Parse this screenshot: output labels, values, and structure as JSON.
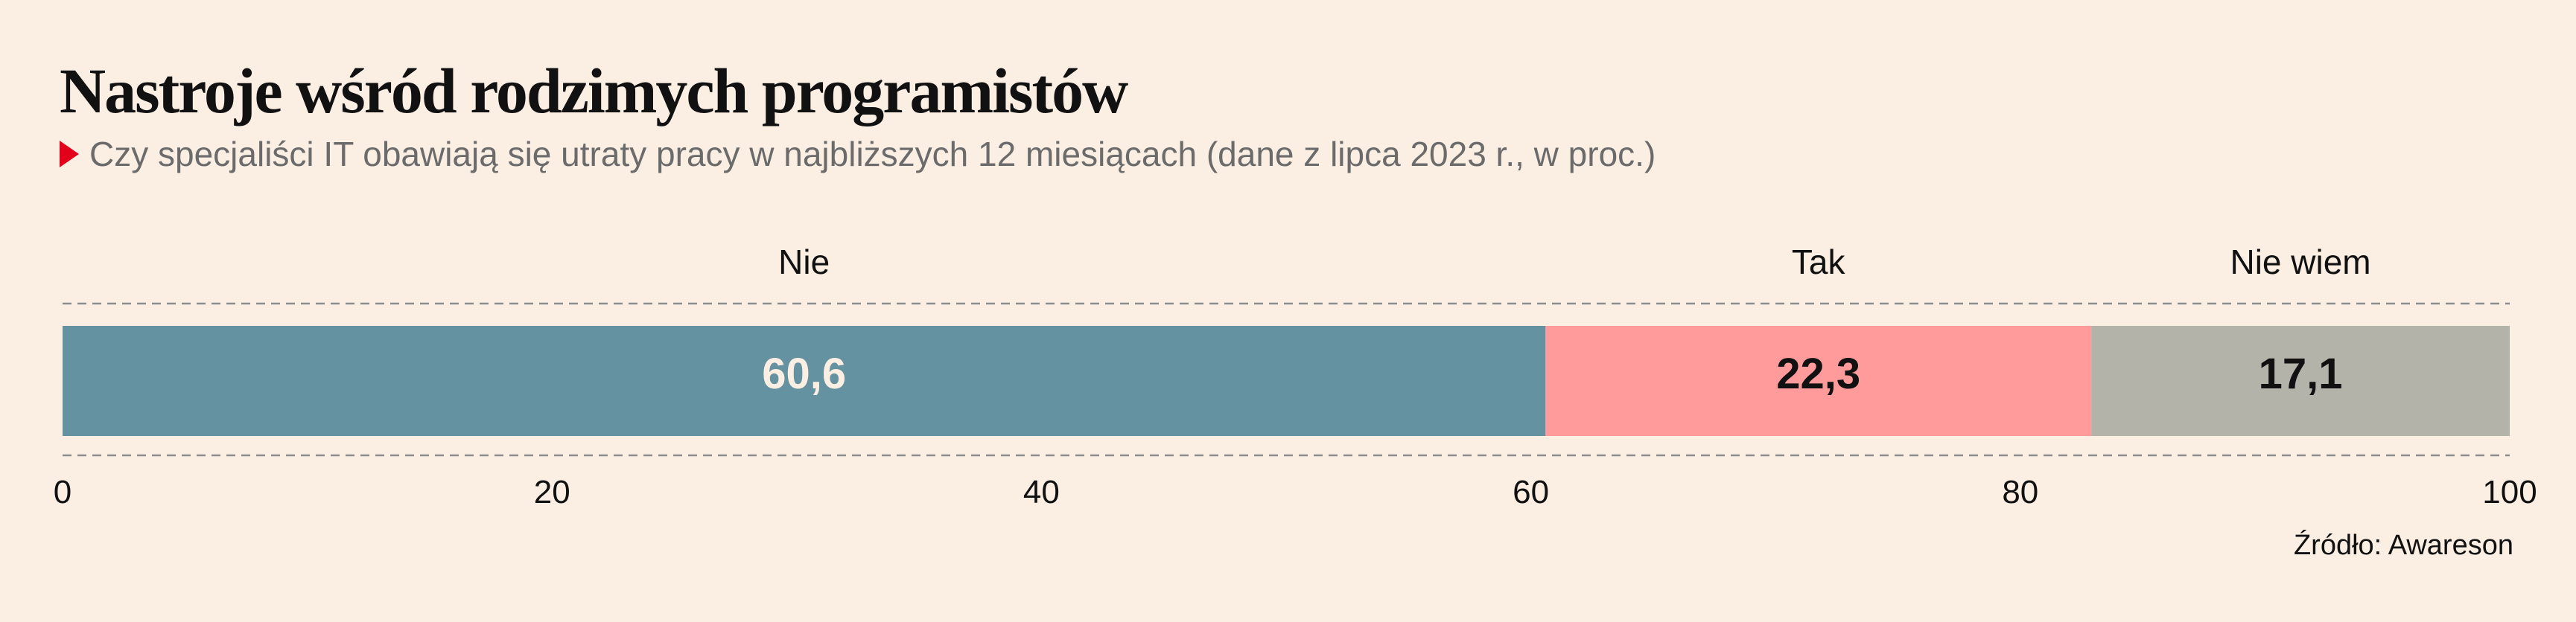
{
  "header": {
    "title": "Nastroje wśród rodzimych programistów",
    "subtitle": "Czy specjaliści IT obawiają się utraty pracy w najbliższych 12 miesiącach (dane z lipca 2023 r., w proc.)"
  },
  "source": "Źródło: Awareson",
  "chart_data": {
    "type": "bar",
    "orientation": "horizontal-stacked",
    "series": [
      {
        "name": "Nie",
        "value": 60.6,
        "label": "60,6",
        "color": "#6592a1",
        "label_color": "#fbeee3"
      },
      {
        "name": "Tak",
        "value": 22.3,
        "label": "22,3",
        "color": "#ff9b9b",
        "label_color": "#111111"
      },
      {
        "name": "Nie wiem",
        "value": 17.1,
        "label": "17,1",
        "color": "#b4b3aa",
        "label_color": "#111111"
      }
    ],
    "xlim": [
      0,
      100
    ],
    "xticks": [
      "0",
      "20",
      "40",
      "60",
      "80",
      "100"
    ],
    "grid": false,
    "legend": "top"
  }
}
